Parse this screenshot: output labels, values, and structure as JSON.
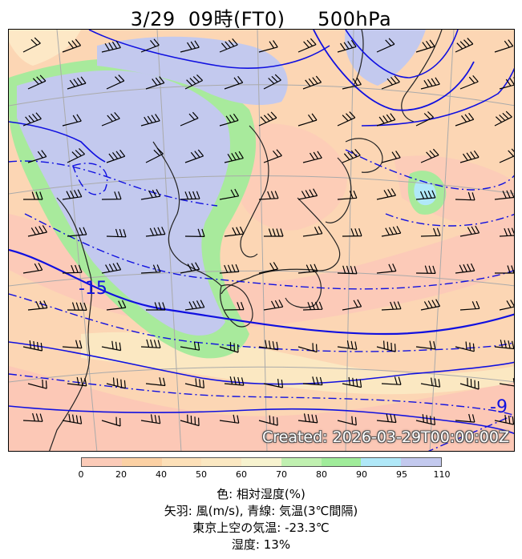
{
  "title": "3/29  09時(FT0)     500hPa",
  "created_label": "Created: 2026-03-29T00:00:00Z",
  "contour_labels": {
    "minus15": "-15",
    "minus9": "-9"
  },
  "colorbar": {
    "ticks": [
      "0",
      "20",
      "40",
      "50",
      "60",
      "70",
      "80",
      "90",
      "95",
      "110"
    ],
    "colors": [
      "#fccbb8",
      "#fcd1a4",
      "#fde0b8",
      "#fbe8c2",
      "#f7f3cf",
      "#c0f0b0",
      "#a0ec9a",
      "#b0e8f8",
      "#c3c9ee"
    ]
  },
  "captions": {
    "color": "色: 相対湿度(%)",
    "barbs": "矢羽: 風(m/s), 青線: 気温(3℃間隔)",
    "tokyo_temp": "東京上空の気温: -23.3℃",
    "humidity": "湿度: 13%"
  },
  "colors": {
    "contour": "#1010e0",
    "land_line": "#222222",
    "grid": "#aaaaaa"
  }
}
